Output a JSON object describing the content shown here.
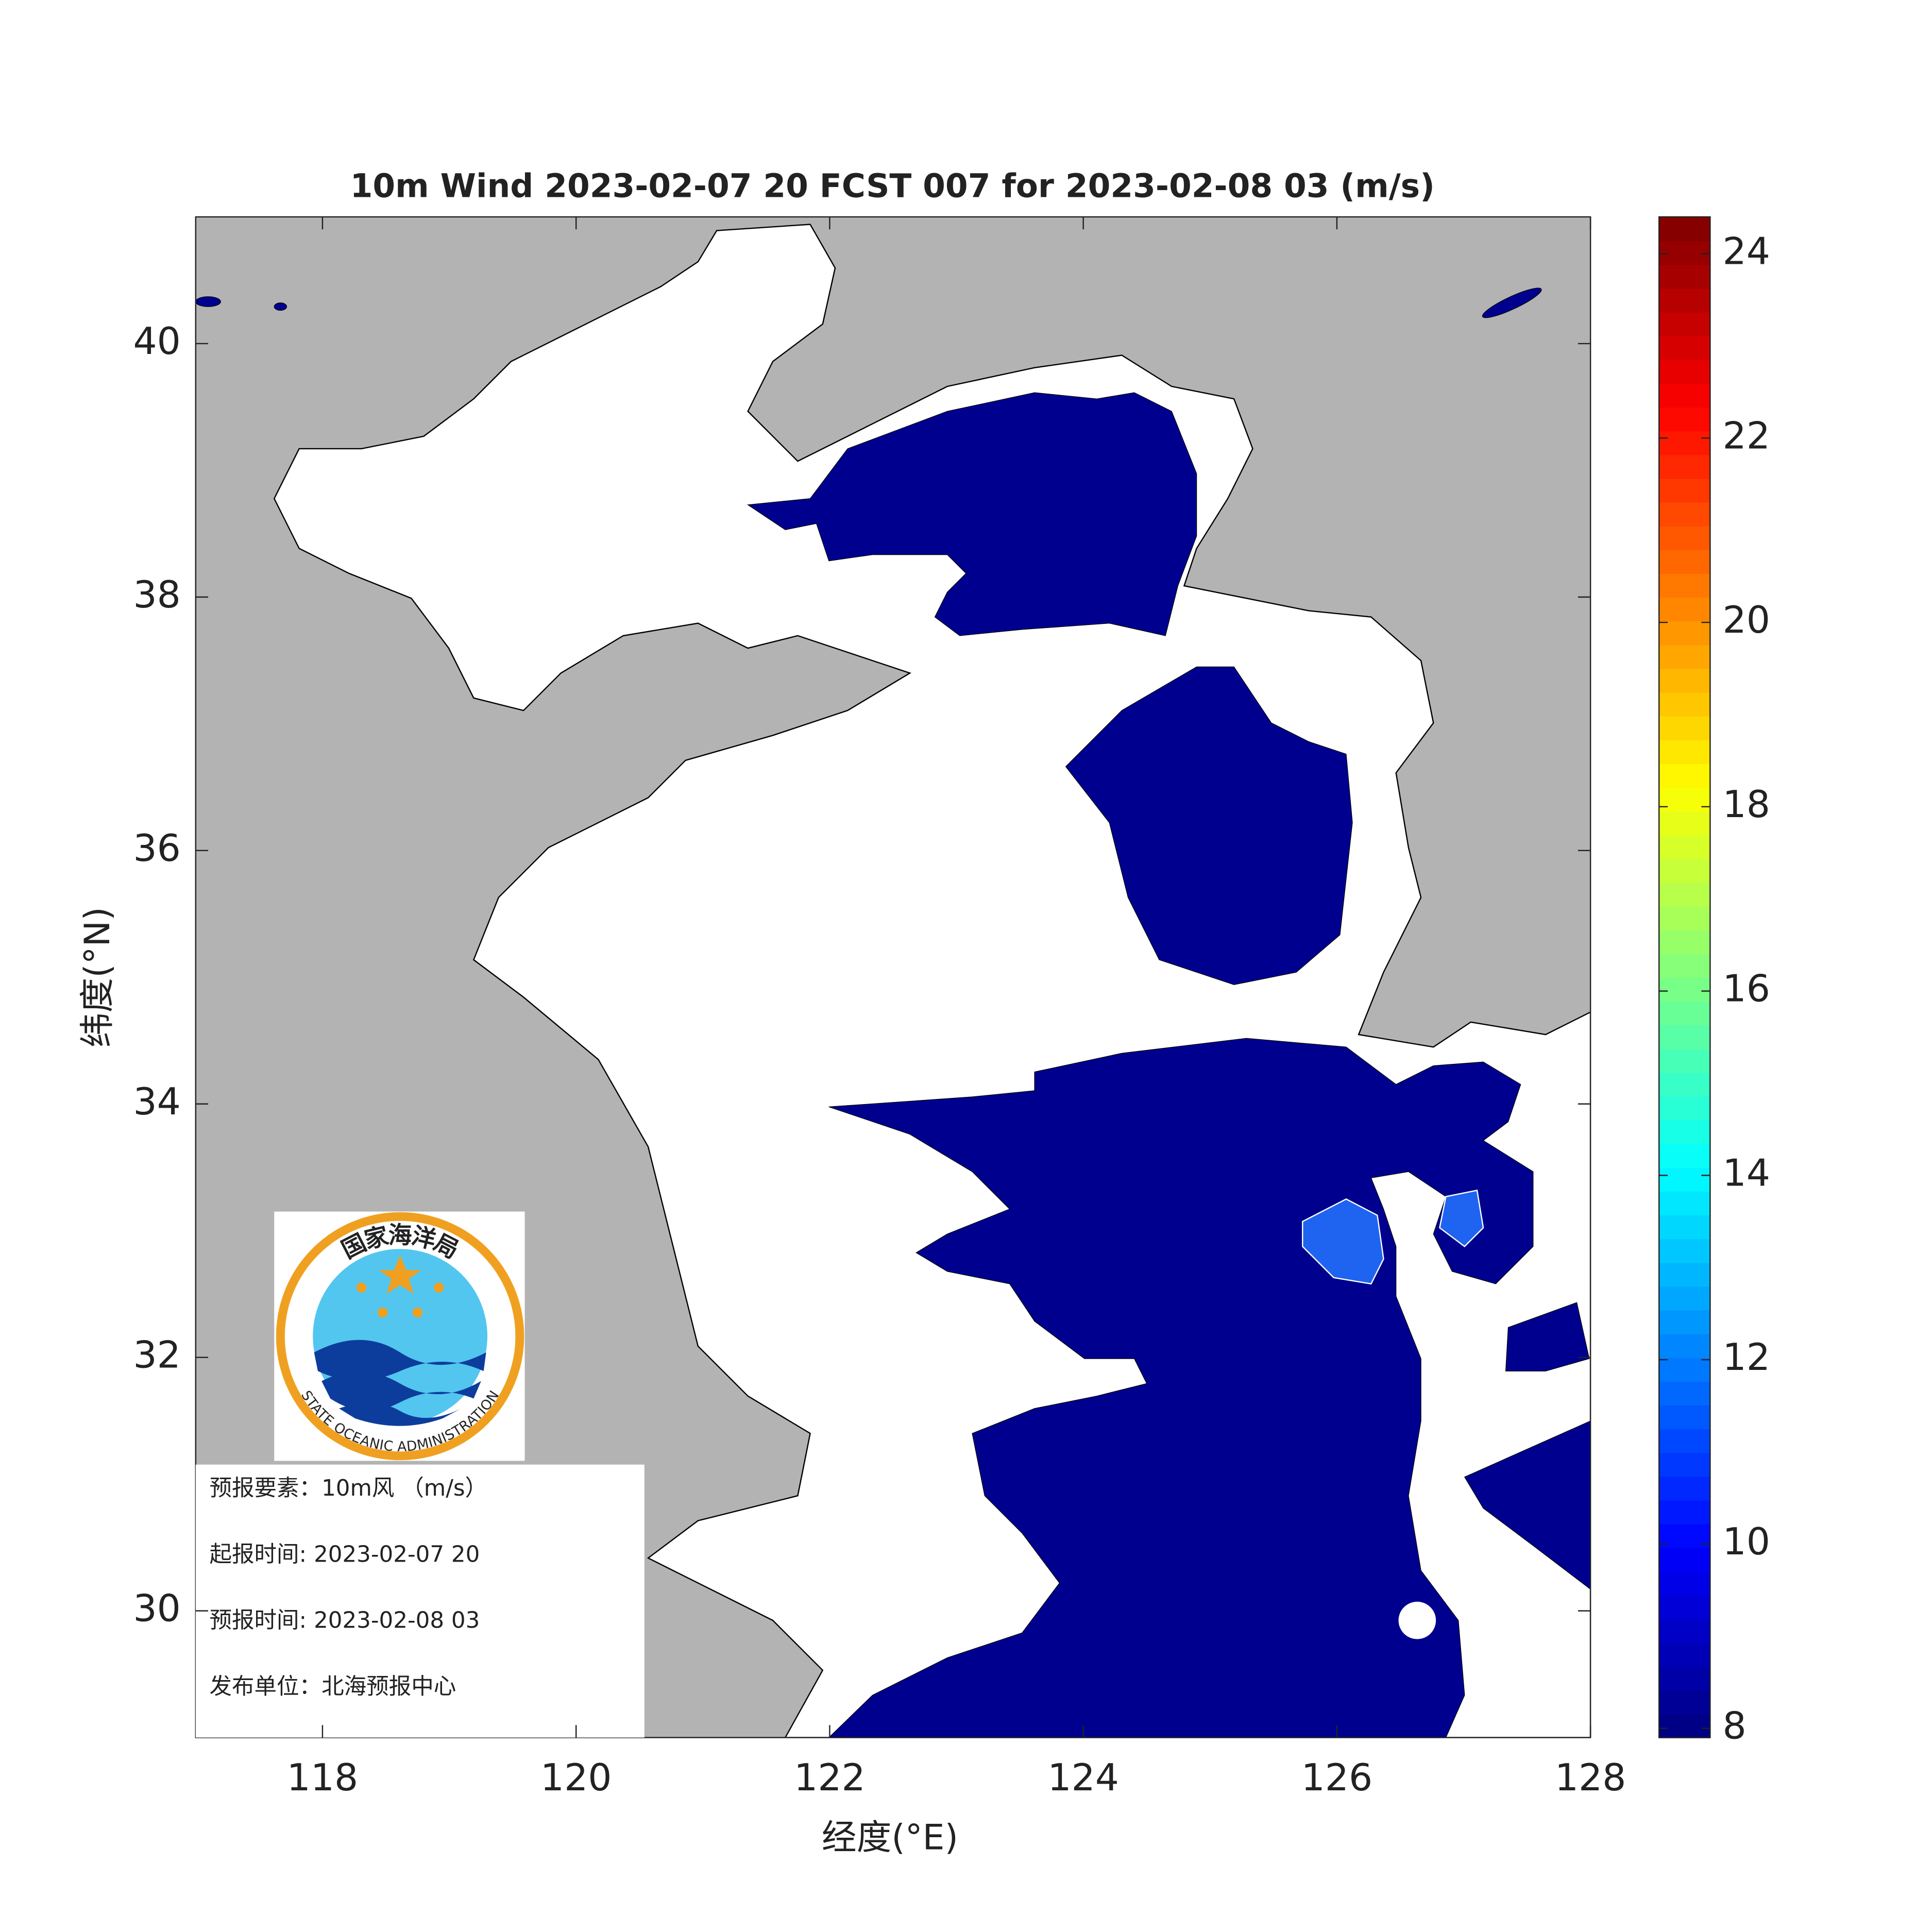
{
  "chart_data": {
    "type": "map",
    "title": "10m Wind 2023-02-07 20 FCST 007 for 2023-02-08 03 (m/s)",
    "x_label": "经度(°E)",
    "y_label": "纬度(°N)",
    "xlim": [
      117,
      128
    ],
    "ylim": [
      29,
      41
    ],
    "xticks": [
      118,
      120,
      122,
      124,
      126,
      128
    ],
    "yticks": [
      30,
      32,
      34,
      36,
      38,
      40
    ],
    "colorbar": {
      "lim": [
        7.9,
        24.4
      ],
      "ticks": [
        8,
        10,
        12,
        14,
        16,
        18,
        20,
        22,
        24
      ],
      "colormap": "jet"
    },
    "info": [
      "预报要素：10m风 （m/s）",
      "起报时间: 2023-02-07 20",
      "预报时间: 2023-02-08 03",
      "发布单位：北海预报中心"
    ],
    "logo": {
      "top_text": "国家海洋局",
      "bottom_text": "STATE OCEANIC ADMINISTRATION"
    }
  }
}
